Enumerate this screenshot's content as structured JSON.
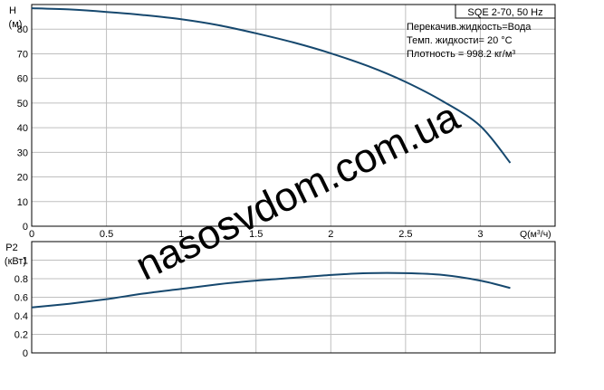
{
  "legend": {
    "title": "SQE 2-70, 50 Hz",
    "lines": [
      "Перекачив.жидкость=Вода",
      "Темп. жидкости= 20 °C",
      "Плотность = 998.2 кг/м³"
    ]
  },
  "watermark": "nasosvdom.com.ua",
  "colors": {
    "curve": "#16486e",
    "grid": "#bfbfbf",
    "frame": "#000000",
    "watermark": "#c7ccdc"
  },
  "chart_data": [
    {
      "type": "line",
      "ylabel": "H",
      "yunit": "(м)",
      "xlabel": "Q(м³/ч)",
      "xlim": [
        0,
        3.5
      ],
      "ylim": [
        0,
        90
      ],
      "xticks": [
        "0",
        "0.5",
        "1",
        "1.5",
        "2",
        "2.5",
        "3"
      ],
      "yticks": [
        "0",
        "10",
        "20",
        "30",
        "40",
        "50",
        "60",
        "70",
        "80"
      ],
      "grid": true,
      "series": [
        {
          "x": [
            0,
            0.25,
            0.5,
            0.75,
            1.0,
            1.25,
            1.5,
            1.75,
            2.0,
            2.25,
            2.5,
            2.75,
            3.0,
            3.2
          ],
          "values": [
            88.5,
            88.0,
            87.0,
            85.7,
            84.0,
            81.6,
            78.3,
            74.6,
            70.2,
            65.0,
            58.6,
            50.7,
            40.7,
            25.7
          ]
        }
      ]
    },
    {
      "type": "line",
      "ylabel": "P2",
      "yunit": "(кВт)",
      "xlim": [
        0,
        3.5
      ],
      "ylim": [
        0,
        1.2
      ],
      "yticks": [
        "0",
        "0.2",
        "0.4",
        "0.6",
        "0.8",
        "1"
      ],
      "grid": true,
      "series": [
        {
          "x": [
            0,
            0.25,
            0.5,
            0.75,
            1.0,
            1.25,
            1.5,
            1.75,
            2.0,
            2.25,
            2.5,
            2.75,
            3.0,
            3.2
          ],
          "values": [
            0.49,
            0.53,
            0.58,
            0.64,
            0.69,
            0.74,
            0.78,
            0.81,
            0.84,
            0.86,
            0.86,
            0.84,
            0.78,
            0.7
          ]
        }
      ]
    }
  ]
}
